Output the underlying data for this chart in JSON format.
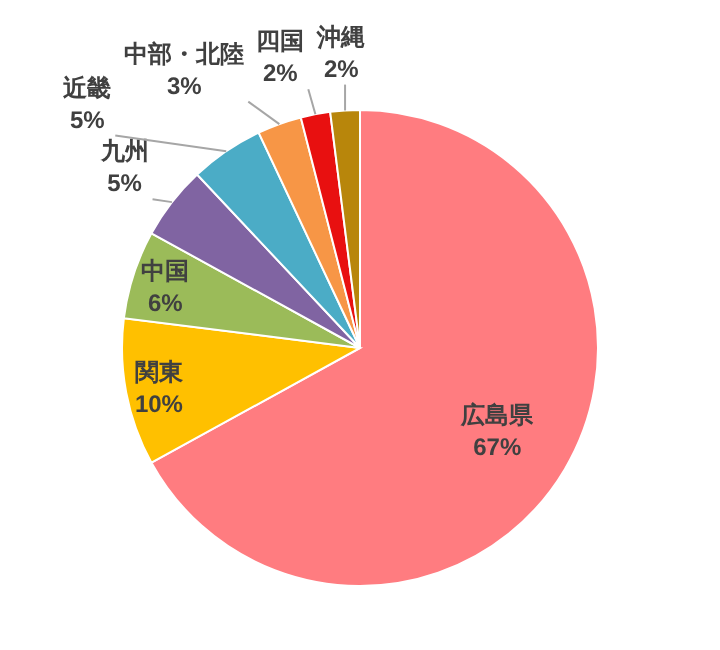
{
  "chart_data": {
    "type": "pie",
    "categories": [
      "広島県",
      "関東",
      "中国",
      "九州",
      "近畿",
      "中部・北陸",
      "四国",
      "沖縄"
    ],
    "values": [
      67,
      10,
      6,
      5,
      5,
      3,
      2,
      2
    ],
    "colors": [
      "#ff7c80",
      "#ffc000",
      "#9bbb59",
      "#8064a2",
      "#4bacc6",
      "#f79646",
      "#e81010",
      "#b8860b"
    ],
    "value_labels": [
      "67%",
      "10%",
      "6%",
      "5%",
      "5%",
      "3%",
      "2%",
      "2%"
    ]
  }
}
